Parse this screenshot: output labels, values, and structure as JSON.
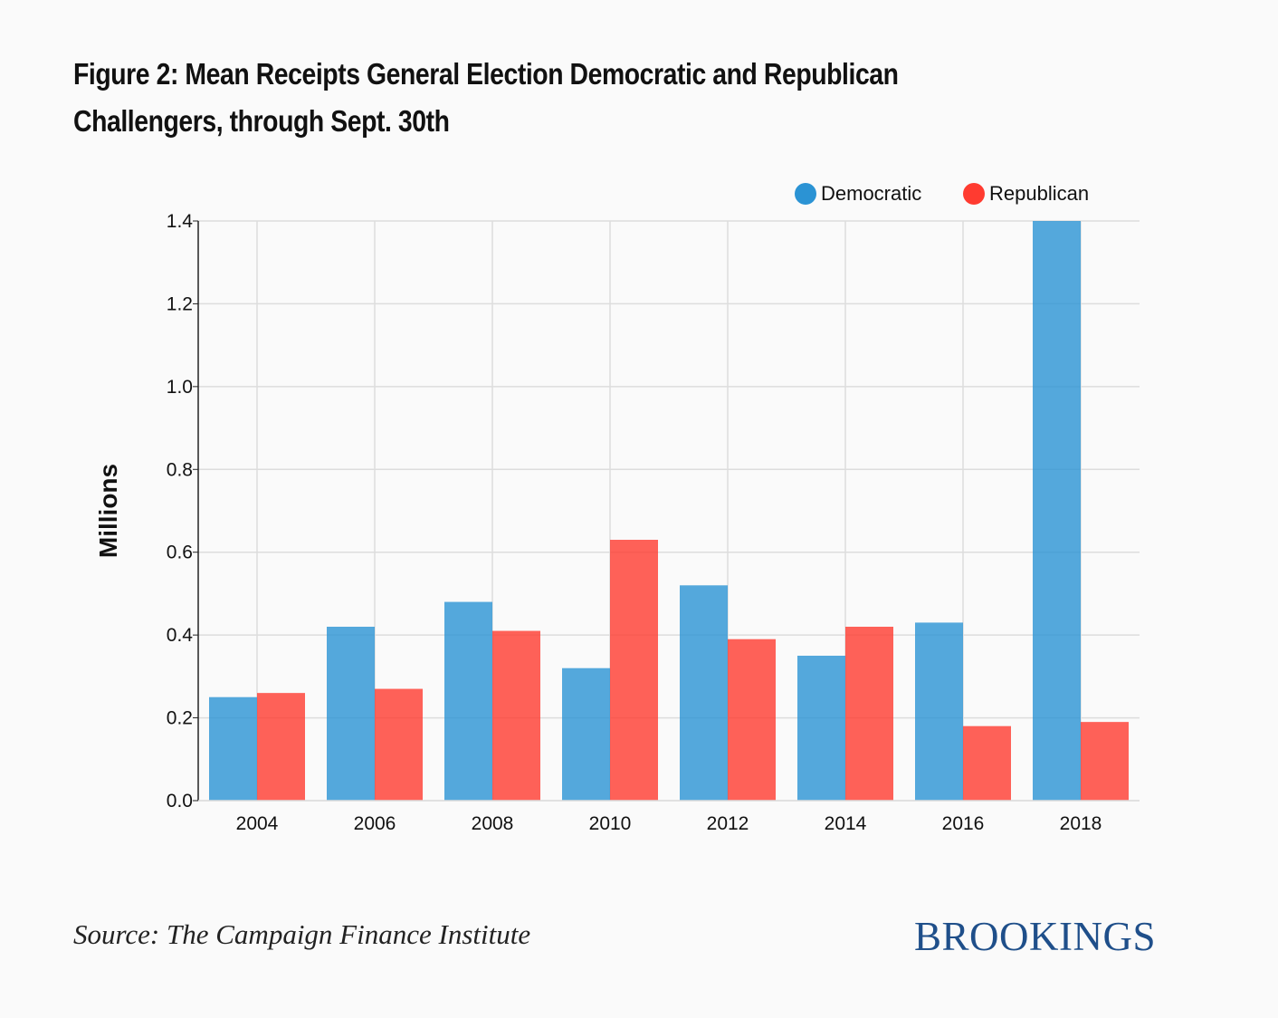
{
  "title_lines": [
    "Figure 2: Mean Receipts General Election Democratic and Republican",
    "Challengers, through Sept. 30th"
  ],
  "source": "Source: The Campaign Finance Institute",
  "brand": "BROOKINGS",
  "colors": {
    "democratic": "#2b93d4",
    "republican": "#ff3b30",
    "grid": "#dddddd",
    "axis": "#222222"
  },
  "chart_data": {
    "type": "bar",
    "title": "Figure 2: Mean Receipts General Election Democratic and Republican Challengers, through Sept. 30th",
    "xlabel": "",
    "ylabel": "Millions",
    "categories": [
      "2004",
      "2006",
      "2008",
      "2010",
      "2012",
      "2014",
      "2016",
      "2018"
    ],
    "series": [
      {
        "name": "Democratic",
        "values": [
          0.25,
          0.42,
          0.48,
          0.32,
          0.52,
          0.35,
          0.43,
          1.4
        ]
      },
      {
        "name": "Republican",
        "values": [
          0.26,
          0.27,
          0.41,
          0.63,
          0.39,
          0.42,
          0.18,
          0.19
        ]
      }
    ],
    "ylim": [
      0,
      1.4
    ],
    "yticks": [
      "0.0",
      "0.2",
      "0.4",
      "0.6",
      "0.8",
      "1.0",
      "1.2",
      "1.4"
    ],
    "grid": true,
    "legend_position": "top-right"
  }
}
